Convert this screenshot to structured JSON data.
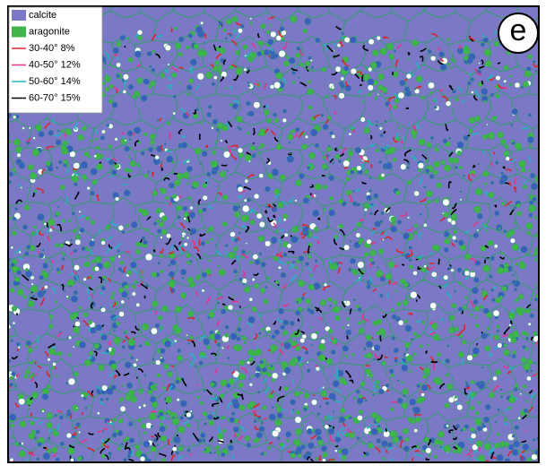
{
  "panel_label": "e",
  "legend": [
    {
      "label": "calcite",
      "kind": "swatch",
      "color": "#7b79c6"
    },
    {
      "label": "aragonite",
      "kind": "swatch",
      "color": "#3fb54a"
    },
    {
      "label": "30-40° 8%",
      "kind": "line",
      "color": "#d8262c"
    },
    {
      "label": "40-50° 12%",
      "kind": "line",
      "color": "#e0368c"
    },
    {
      "label": "50-60° 14%",
      "kind": "line",
      "color": "#22b5bf"
    },
    {
      "label": "60-70° 15%",
      "kind": "line",
      "color": "#000000"
    }
  ]
}
